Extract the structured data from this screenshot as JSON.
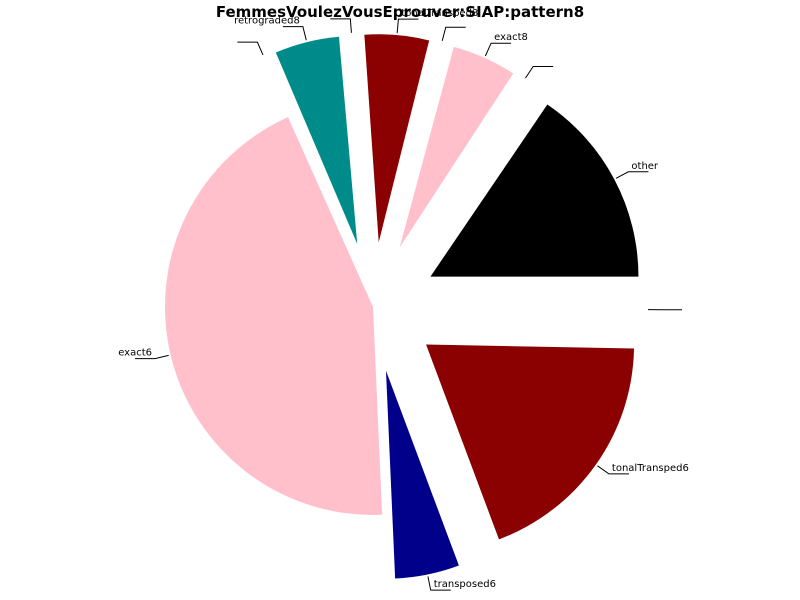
{
  "chart_data": {
    "type": "pie",
    "title": "FemmesVoulezVousEprouver:SIAP:pattern8",
    "slices": [
      {
        "label": "other",
        "value": 15.5,
        "color": "#000000",
        "exploded": true
      },
      {
        "label": "",
        "value": 0.3,
        "color": "#ffffff",
        "exploded": true
      },
      {
        "label": "exact8",
        "value": 5.0,
        "color": "#ffc0cb",
        "exploded": true
      },
      {
        "label": "",
        "value": 0.3,
        "color": "#ffffff",
        "exploded": true
      },
      {
        "label": "tonalTransped8",
        "value": 5.0,
        "color": "#8b0000",
        "exploded": true
      },
      {
        "label": "",
        "value": 0.3,
        "color": "#ffffff",
        "exploded": true
      },
      {
        "label": "retrograded8",
        "value": 5.0,
        "color": "#008b8b",
        "exploded": true
      },
      {
        "label": "",
        "value": 0.3,
        "color": "#ffffff",
        "exploded": true
      },
      {
        "label": "exact6",
        "value": 44.0,
        "color": "#ffc0cb",
        "exploded": false
      },
      {
        "label": "transposed6",
        "value": 5.0,
        "color": "#00008b",
        "exploded": true
      },
      {
        "label": "tonalTransped6",
        "value": 19.0,
        "color": "#8b0000",
        "exploded": true
      },
      {
        "label": "",
        "value": 0.3,
        "color": "#ffffff",
        "exploded": true
      }
    ]
  }
}
